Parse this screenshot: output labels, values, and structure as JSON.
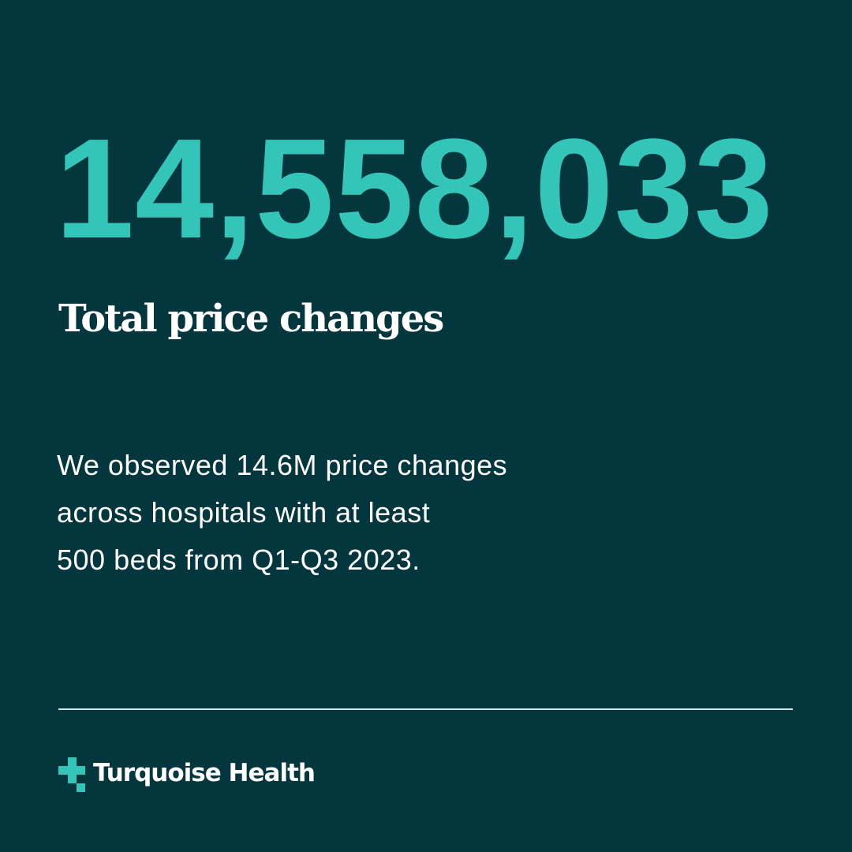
{
  "headline": {
    "value": "14,558,033",
    "color": "#33c5b8"
  },
  "subtitle": "Total price changes",
  "description": {
    "lines": [
      "We observed 14.6M price changes",
      "across hospitals with at least",
      "500 beds from Q1-Q3 2023."
    ]
  },
  "brand": {
    "name": "Turquoise Health",
    "icon": "plus-cross-icon",
    "accent": "#33c5b8",
    "background": "#03363d"
  }
}
